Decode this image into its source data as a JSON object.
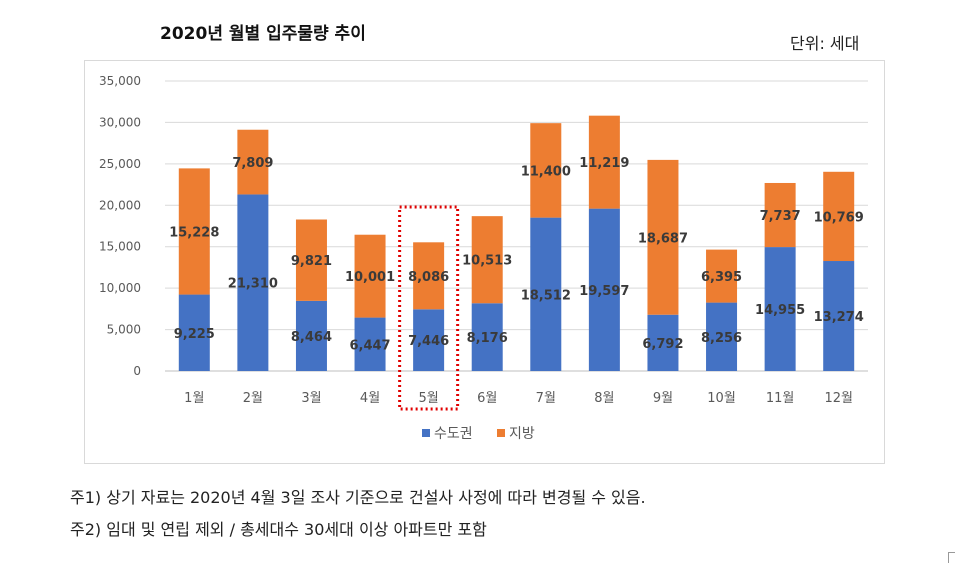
{
  "title": "2020년 월별 입주물량 추이",
  "unit": "단위: 세대",
  "notes": [
    "주1) 상기 자료는 2020년 4월 3일 조사 기준으로 건설사 사정에 따라 변경될 수 있음.",
    "주2) 임대 및 연립 제외 / 총세대수 30세대 이상 아파트만 포함"
  ],
  "chart_data": {
    "type": "bar",
    "stacked": true,
    "title": "2020년 월별 입주물량 추이",
    "xlabel": "",
    "ylabel": "",
    "categories": [
      "1월",
      "2월",
      "3월",
      "4월",
      "5월",
      "6월",
      "7월",
      "8월",
      "9월",
      "10월",
      "11월",
      "12월"
    ],
    "series": [
      {
        "name": "수도권",
        "color": "#4472c4",
        "values": [
          9225,
          21310,
          8464,
          6447,
          7446,
          8176,
          18512,
          19597,
          6792,
          8256,
          14955,
          13274
        ],
        "labels": [
          "9,225",
          "21,310",
          "8,464",
          "6,447",
          "7,446",
          "8,176",
          "18,512",
          "19,597",
          "6,792",
          "8,256",
          "14,955",
          "13,274"
        ]
      },
      {
        "name": "지방",
        "color": "#ed7d31",
        "values": [
          15228,
          7809,
          9821,
          10001,
          8086,
          10513,
          11400,
          11219,
          18687,
          6395,
          7737,
          10769
        ],
        "labels": [
          "15,228",
          "7,809",
          "9,821",
          "10,001",
          "8,086",
          "10,513",
          "11,400",
          "11,219",
          "18,687",
          "6,395",
          "7,737",
          "10,769"
        ]
      }
    ],
    "ylim": [
      0,
      35000
    ],
    "yticks": [
      0,
      5000,
      10000,
      15000,
      20000,
      25000,
      30000,
      35000
    ],
    "ytick_labels": [
      "0",
      "5,000",
      "10,000",
      "15,000",
      "20,000",
      "25,000",
      "30,000",
      "35,000"
    ],
    "grid": true,
    "legend_position": "bottom",
    "highlight": {
      "category": "5월",
      "style": "red dotted box",
      "color": "#e00000"
    }
  }
}
